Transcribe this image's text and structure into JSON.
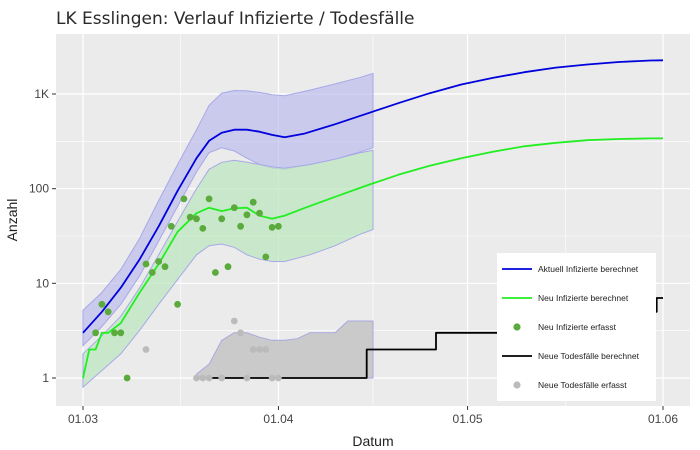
{
  "chart_data": {
    "type": "line",
    "title": "LK Esslingen: Verlauf Infizierte / Todesfälle",
    "xlabel": "Datum",
    "ylabel": "Anzahl",
    "x_scale": "date",
    "y_scale": "log",
    "xlim": [
      "2020-02-29",
      "2020-06-02"
    ],
    "ylim": [
      0.7,
      2800
    ],
    "grid": true,
    "legend_position": "right",
    "x_ticks": [
      {
        "x": "2020-03-01",
        "label": "01.03"
      },
      {
        "x": "2020-04-01",
        "label": "01.04"
      },
      {
        "x": "2020-05-01",
        "label": "01.05"
      },
      {
        "x": "2020-06-01",
        "label": "01.06"
      }
    ],
    "y_ticks": [
      {
        "y": 1,
        "label": "1"
      },
      {
        "y": 10,
        "label": "10"
      },
      {
        "y": 100,
        "label": "100"
      },
      {
        "y": 1000,
        "label": "1K"
      }
    ],
    "colors": {
      "aktuell": "#0000dd",
      "neu": "#22ee22",
      "neu_points": "#5aaa3c",
      "tod": "#000000",
      "tod_points": "#bbbbbb",
      "band_blue_fill": "#b4b4ec",
      "band_blue_line": "#a8a8e8",
      "band_green_fill": "#bde7c0",
      "band_grey_fill": "#c6c6c6",
      "band_grey_line": "#a8a8e0",
      "panel": "#ebebeb",
      "grid": "#ffffff"
    },
    "bands": [
      {
        "key": "aktuell_band",
        "color_key": "band_blue_fill",
        "x": [
          "2020-03-01",
          "2020-03-04",
          "2020-03-07",
          "2020-03-10",
          "2020-03-13",
          "2020-03-16",
          "2020-03-19",
          "2020-03-21",
          "2020-03-23",
          "2020-03-25",
          "2020-03-27",
          "2020-03-29",
          "2020-03-31",
          "2020-04-02",
          "2020-04-06",
          "2020-04-10",
          "2020-04-14",
          "2020-04-16"
        ],
        "upper": [
          5.2,
          8,
          14,
          30,
          75,
          180,
          420,
          760,
          1020,
          1090,
          1080,
          1040,
          980,
          960,
          1100,
          1280,
          1500,
          1650
        ],
        "lower": [
          2.2,
          3.5,
          6,
          12,
          28,
          65,
          150,
          240,
          270,
          250,
          210,
          180,
          165,
          160,
          180,
          205,
          245,
          270
        ]
      },
      {
        "key": "neu_band",
        "color_key": "band_green_fill",
        "x": [
          "2020-03-01",
          "2020-03-04",
          "2020-03-07",
          "2020-03-10",
          "2020-03-13",
          "2020-03-16",
          "2020-03-19",
          "2020-03-21",
          "2020-03-23",
          "2020-03-25",
          "2020-03-27",
          "2020-03-29",
          "2020-03-31",
          "2020-04-02",
          "2020-04-06",
          "2020-04-10",
          "2020-04-14",
          "2020-04-16"
        ],
        "upper": [
          1.8,
          2.8,
          4.5,
          9,
          20,
          45,
          100,
          160,
          190,
          200,
          190,
          180,
          170,
          165,
          180,
          205,
          240,
          255
        ],
        "lower": [
          0.8,
          1.2,
          1.8,
          3.2,
          6,
          11,
          20,
          25,
          26,
          24,
          20,
          18,
          17,
          17,
          20,
          25,
          33,
          37
        ]
      },
      {
        "key": "tod_band",
        "color_key": "band_grey_fill",
        "x": [
          "2020-03-19",
          "2020-03-21",
          "2020-03-23",
          "2020-03-25",
          "2020-03-27",
          "2020-03-29",
          "2020-03-31",
          "2020-04-02",
          "2020-04-04",
          "2020-04-06",
          "2020-04-08",
          "2020-04-10",
          "2020-04-12",
          "2020-04-14",
          "2020-04-16"
        ],
        "upper": [
          1.1,
          1.4,
          2.5,
          3,
          3,
          2.7,
          2.5,
          2.5,
          2.6,
          3,
          3,
          3,
          4,
          4,
          4
        ],
        "lower": [
          1,
          1,
          1,
          1,
          1,
          1,
          1,
          1,
          1,
          1,
          1,
          1,
          1,
          1,
          1
        ]
      }
    ],
    "series": [
      {
        "name": "Aktuell Infizierte berechnet",
        "color_key": "aktuell",
        "kind": "line",
        "x": [
          "2020-03-01",
          "2020-03-04",
          "2020-03-07",
          "2020-03-10",
          "2020-03-13",
          "2020-03-16",
          "2020-03-19",
          "2020-03-21",
          "2020-03-23",
          "2020-03-25",
          "2020-03-27",
          "2020-03-29",
          "2020-03-31",
          "2020-04-02",
          "2020-04-05",
          "2020-04-10",
          "2020-04-15",
          "2020-04-20",
          "2020-04-25",
          "2020-04-30",
          "2020-05-05",
          "2020-05-10",
          "2020-05-15",
          "2020-05-20",
          "2020-05-25",
          "2020-05-30",
          "2020-06-01"
        ],
        "y": [
          3,
          5,
          9,
          18,
          40,
          95,
          210,
          320,
          390,
          420,
          420,
          400,
          370,
          350,
          380,
          480,
          620,
          800,
          1020,
          1260,
          1480,
          1700,
          1900,
          2050,
          2180,
          2260,
          2270
        ]
      },
      {
        "name": "Neu Infizierte berechnet",
        "color_key": "neu",
        "kind": "line",
        "x": [
          "2020-03-01",
          "2020-03-02",
          "2020-03-03",
          "2020-03-04",
          "2020-03-05",
          "2020-03-07",
          "2020-03-10",
          "2020-03-13",
          "2020-03-16",
          "2020-03-19",
          "2020-03-21",
          "2020-03-23",
          "2020-03-25",
          "2020-03-27",
          "2020-03-29",
          "2020-03-31",
          "2020-04-02",
          "2020-04-05",
          "2020-04-10",
          "2020-04-15",
          "2020-04-20",
          "2020-04-25",
          "2020-04-30",
          "2020-05-05",
          "2020-05-10",
          "2020-05-15",
          "2020-05-20",
          "2020-05-25",
          "2020-05-30",
          "2020-06-01"
        ],
        "y": [
          1,
          2,
          2,
          3,
          3,
          3.8,
          8,
          16,
          35,
          55,
          63,
          58,
          62,
          63,
          52,
          48,
          52,
          62,
          82,
          108,
          140,
          175,
          210,
          245,
          280,
          305,
          325,
          335,
          340,
          340
        ]
      },
      {
        "name": "Neu Infizierte erfasst",
        "color_key": "neu_points",
        "kind": "points",
        "x": [
          "2020-03-03",
          "2020-03-04",
          "2020-03-05",
          "2020-03-06",
          "2020-03-07",
          "2020-03-08",
          "2020-03-11",
          "2020-03-12",
          "2020-03-13",
          "2020-03-14",
          "2020-03-15",
          "2020-03-16",
          "2020-03-17",
          "2020-03-18",
          "2020-03-19",
          "2020-03-20",
          "2020-03-21",
          "2020-03-22",
          "2020-03-23",
          "2020-03-24",
          "2020-03-25",
          "2020-03-26",
          "2020-03-27",
          "2020-03-28",
          "2020-03-29",
          "2020-03-30",
          "2020-03-31",
          "2020-04-01"
        ],
        "y": [
          3,
          6,
          5,
          3,
          3,
          1,
          16,
          13,
          17,
          15,
          40,
          6,
          78,
          50,
          48,
          38,
          78,
          13,
          48,
          15,
          63,
          40,
          53,
          72,
          55,
          19,
          39,
          40
        ]
      },
      {
        "name": "Neue Todesfälle berechnet",
        "color_key": "tod",
        "kind": "step",
        "x": [
          "2020-03-20",
          "2020-04-15",
          "2020-04-15",
          "2020-04-26",
          "2020-04-26",
          "2020-05-23",
          "2020-05-23",
          "2020-05-31",
          "2020-05-31",
          "2020-06-01"
        ],
        "y": [
          1,
          1,
          2,
          2,
          3,
          3,
          5,
          5,
          7,
          7
        ]
      },
      {
        "name": "Neue Todesfälle erfasst",
        "color_key": "tod_points",
        "kind": "points",
        "x": [
          "2020-03-11",
          "2020-03-19",
          "2020-03-20",
          "2020-03-21",
          "2020-03-23",
          "2020-03-25",
          "2020-03-26",
          "2020-03-27",
          "2020-03-28",
          "2020-03-29",
          "2020-03-30",
          "2020-03-31",
          "2020-04-01"
        ],
        "y": [
          2,
          1,
          1,
          1,
          1,
          4,
          3,
          1,
          2,
          2,
          2,
          1,
          1
        ]
      }
    ]
  }
}
